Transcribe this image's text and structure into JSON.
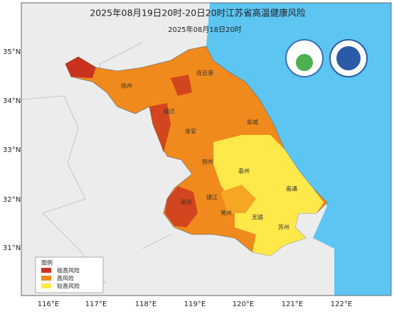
{
  "title": "2025年08月19日20时-20日20时江苏省高温健康风险",
  "subtitle": "2025年08月18日20时",
  "latitude_labels": [
    "35°N",
    "34°N",
    "33°N",
    "32°N",
    "31°N"
  ],
  "longitude_labels": [
    "116°E",
    "117°E",
    "118°E",
    "119°E",
    "120°E",
    "121°E",
    "122°E"
  ],
  "cities": [
    "连云港",
    "徐州",
    "宿迁",
    "淮安",
    "盐城",
    "扬州",
    "泰州",
    "南通",
    "南京",
    "镇江",
    "常州",
    "无锡",
    "苏州"
  ],
  "legend": {
    "title": "图例",
    "items": [
      "极高风险",
      "高风险",
      "较高风险"
    ]
  }
}
